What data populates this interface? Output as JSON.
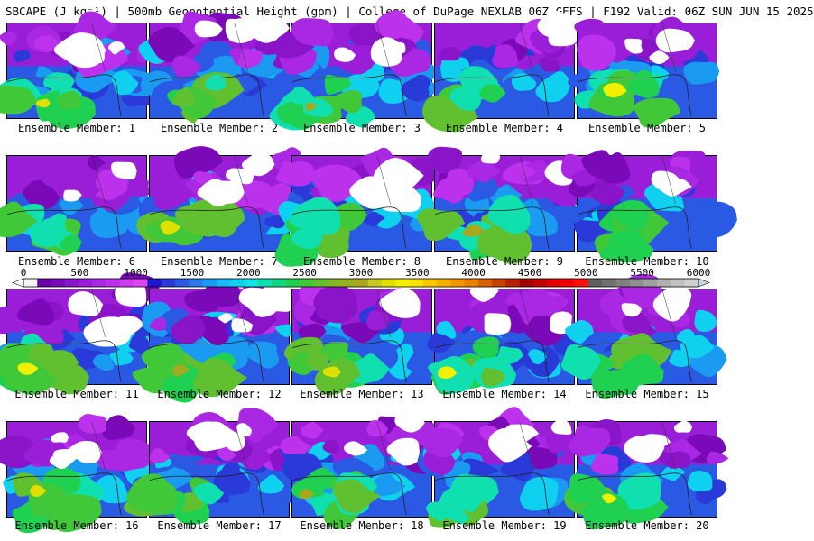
{
  "header": {
    "title": "SBCAPE (J kg⁻¹) | 500mb Geopotential Height (gpm) | College of DuPage NEXLAB 06Z GEFS | F192 Valid: 06Z SUN JUN 15 2025"
  },
  "legend": {
    "ticks": [
      "0",
      "500",
      "1000",
      "1500",
      "2000",
      "2500",
      "3000",
      "3500",
      "4000",
      "4500",
      "5000",
      "5500",
      "6000"
    ],
    "range": [
      0,
      6000
    ],
    "step": 125,
    "colors": [
      "#f4f4f4",
      "#6a00a8",
      "#7a0ab8",
      "#8a14c8",
      "#9a1ed8",
      "#aa28e4",
      "#bc32ec",
      "#ce3cf0",
      "#de46f2",
      "#1a1acc",
      "#2a3ad8",
      "#2a5ae4",
      "#2a7aec",
      "#1a9af0",
      "#1ab8f4",
      "#10d0f0",
      "#10e4e4",
      "#10e0b0",
      "#10d880",
      "#20d050",
      "#40c838",
      "#60c030",
      "#80b828",
      "#98b020",
      "#a8a820",
      "#c8c820",
      "#e0e000",
      "#f0f000",
      "#f8e000",
      "#f8c800",
      "#f8b000",
      "#f09800",
      "#e88000",
      "#d86000",
      "#c84000",
      "#b82000",
      "#a00000",
      "#c00000",
      "#e00000",
      "#f00000",
      "#ff1010",
      "#606060",
      "#707070",
      "#808080",
      "#909090",
      "#a0a0a0",
      "#b0b0b0",
      "#c0c0c0",
      "#d0d0d0"
    ]
  },
  "members": [
    {
      "label": "Ensemble Member: 1"
    },
    {
      "label": "Ensemble Member: 2"
    },
    {
      "label": "Ensemble Member: 3"
    },
    {
      "label": "Ensemble Member: 4"
    },
    {
      "label": "Ensemble Member: 5"
    },
    {
      "label": "Ensemble Member: 6"
    },
    {
      "label": "Ensemble Member: 7"
    },
    {
      "label": "Ensemble Member: 8"
    },
    {
      "label": "Ensemble Member: 9"
    },
    {
      "label": "Ensemble Member: 10"
    },
    {
      "label": "Ensemble Member: 11"
    },
    {
      "label": "Ensemble Member: 12"
    },
    {
      "label": "Ensemble Member: 13"
    },
    {
      "label": "Ensemble Member: 14"
    },
    {
      "label": "Ensemble Member: 15"
    },
    {
      "label": "Ensemble Member: 16"
    },
    {
      "label": "Ensemble Member: 17"
    },
    {
      "label": "Ensemble Member: 18"
    },
    {
      "label": "Ensemble Member: 19"
    },
    {
      "label": "Ensemble Member: 20"
    }
  ]
}
